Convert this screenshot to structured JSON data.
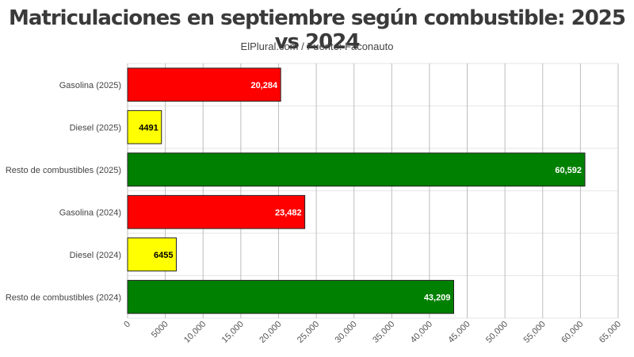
{
  "chart_data": {
    "type": "bar",
    "orientation": "horizontal",
    "title": "Matriculaciones en septiembre según combustible: 2025 vs 2024",
    "subtitle": "ElPlural.com / Fuente: Faconauto",
    "categories": [
      "Gasolina (2025)",
      "Diesel (2025)",
      "Resto de combustibles (2025)",
      "Gasolina (2024)",
      "Diesel (2024)",
      "Resto de combustibles (2024)"
    ],
    "values": [
      20284,
      4491,
      60592,
      23482,
      6455,
      43209
    ],
    "value_labels": [
      "20,284",
      "4491",
      "60,592",
      "23,482",
      "6455",
      "43,209"
    ],
    "colors": [
      "#ff0000",
      "#ffff00",
      "#008000",
      "#ff0000",
      "#ffff00",
      "#008000"
    ],
    "label_colors": [
      "#ffffff",
      "#000000",
      "#ffffff",
      "#ffffff",
      "#000000",
      "#ffffff"
    ],
    "xlim": [
      0,
      65000
    ],
    "x_ticks": [
      0,
      5000,
      10000,
      15000,
      20000,
      25000,
      30000,
      35000,
      40000,
      45000,
      50000,
      55000,
      60000,
      65000
    ],
    "x_tick_labels": [
      "0",
      "5000",
      "10,000",
      "15,000",
      "20,000",
      "25,000",
      "30,000",
      "35,000",
      "40,000",
      "45,000",
      "50,000",
      "55,000",
      "60,000",
      "65,000"
    ],
    "grid": true
  }
}
